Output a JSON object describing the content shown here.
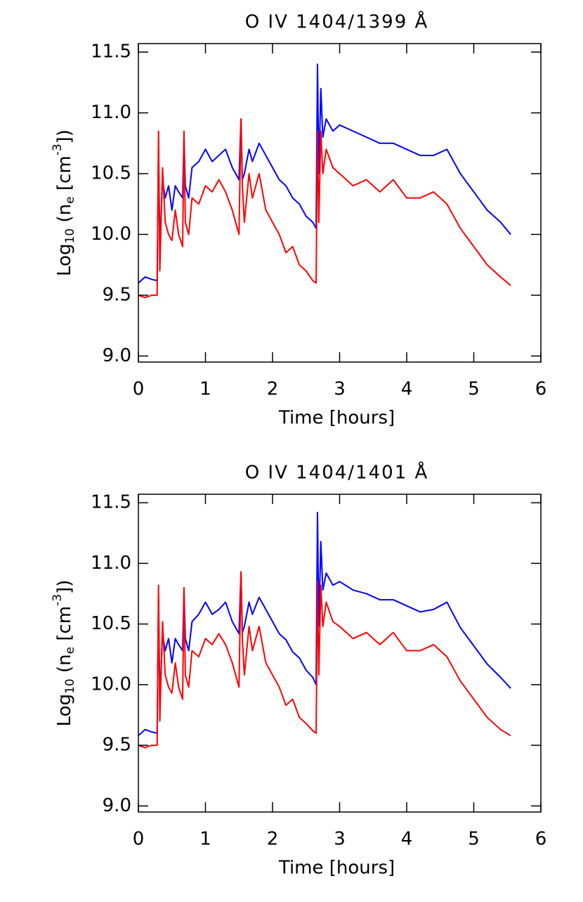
{
  "chart_data": [
    {
      "type": "line",
      "title": "O IV 1404/1399 Å",
      "x_label": "Time [hours]",
      "y_label": [
        "Log",
        "10",
        " (n",
        "e",
        " [cm",
        "-3",
        "])"
      ],
      "xlim": [
        0,
        6
      ],
      "xticks": [
        0,
        1,
        2,
        3,
        4,
        5,
        6
      ],
      "ylim": [
        8.95,
        11.57
      ],
      "yticks": [
        {
          "value": 9,
          "label": "9.0"
        },
        9.5,
        {
          "value": 10,
          "label": "10.0"
        },
        10.5,
        {
          "value": 11,
          "label": "11.0"
        },
        11.5
      ],
      "x": [
        0,
        0.1,
        0.2,
        0.28,
        0.3,
        0.32,
        0.36,
        0.4,
        0.45,
        0.5,
        0.55,
        0.6,
        0.66,
        0.68,
        0.7,
        0.75,
        0.8,
        0.9,
        1.0,
        1.1,
        1.2,
        1.3,
        1.4,
        1.5,
        1.53,
        1.55,
        1.58,
        1.65,
        1.7,
        1.8,
        1.9,
        2.0,
        2.1,
        2.2,
        2.3,
        2.4,
        2.5,
        2.6,
        2.65,
        2.67,
        2.69,
        2.72,
        2.75,
        2.8,
        2.9,
        3.0,
        3.2,
        3.4,
        3.6,
        3.8,
        4.0,
        4.2,
        4.4,
        4.6,
        4.8,
        5.0,
        5.2,
        5.4,
        5.55
      ],
      "series": [
        {
          "color": "#0000ff",
          "values": [
            9.6,
            9.65,
            9.63,
            9.62,
            10.7,
            9.9,
            10.45,
            10.3,
            10.4,
            10.2,
            10.4,
            10.35,
            10.3,
            10.8,
            10.4,
            10.3,
            10.55,
            10.6,
            10.7,
            10.6,
            10.65,
            10.7,
            10.55,
            10.45,
            10.95,
            10.45,
            10.5,
            10.7,
            10.6,
            10.75,
            10.65,
            10.55,
            10.45,
            10.4,
            10.3,
            10.25,
            10.15,
            10.1,
            10.05,
            11.4,
            10.5,
            11.2,
            10.8,
            10.95,
            10.85,
            10.9,
            10.85,
            10.8,
            10.75,
            10.75,
            10.7,
            10.65,
            10.65,
            10.7,
            10.5,
            10.35,
            10.2,
            10.1,
            10.0
          ]
        },
        {
          "color": "#ff0000",
          "values": [
            9.5,
            9.48,
            9.5,
            9.5,
            10.85,
            9.7,
            10.55,
            10.1,
            10.0,
            9.95,
            10.2,
            10.0,
            9.9,
            10.85,
            10.1,
            10.0,
            10.3,
            10.25,
            10.4,
            10.35,
            10.45,
            10.35,
            10.2,
            10.0,
            10.95,
            10.4,
            10.1,
            10.5,
            10.3,
            10.5,
            10.2,
            10.1,
            10.0,
            9.85,
            9.9,
            9.75,
            9.7,
            9.62,
            9.6,
            10.85,
            10.1,
            10.85,
            10.5,
            10.7,
            10.55,
            10.5,
            10.4,
            10.45,
            10.35,
            10.45,
            10.3,
            10.3,
            10.35,
            10.25,
            10.05,
            9.9,
            9.75,
            9.65,
            9.58
          ]
        }
      ]
    },
    {
      "type": "line",
      "title": "O IV 1404/1401 Å",
      "x_label": "Time [hours]",
      "y_label": [
        "Log",
        "10",
        " (n",
        "e",
        " [cm",
        "-3",
        "])"
      ],
      "xlim": [
        0,
        6
      ],
      "xticks": [
        0,
        1,
        2,
        3,
        4,
        5,
        6
      ],
      "ylim": [
        8.95,
        11.57
      ],
      "yticks": [
        {
          "value": 9,
          "label": "9.0"
        },
        9.5,
        {
          "value": 10,
          "label": "10.0"
        },
        10.5,
        {
          "value": 11,
          "label": "11.0"
        },
        11.5
      ],
      "x": [
        0,
        0.1,
        0.2,
        0.28,
        0.3,
        0.32,
        0.36,
        0.4,
        0.45,
        0.5,
        0.55,
        0.6,
        0.66,
        0.68,
        0.7,
        0.75,
        0.8,
        0.9,
        1.0,
        1.1,
        1.2,
        1.3,
        1.4,
        1.5,
        1.53,
        1.55,
        1.58,
        1.65,
        1.7,
        1.8,
        1.9,
        2.0,
        2.1,
        2.2,
        2.3,
        2.4,
        2.5,
        2.6,
        2.65,
        2.67,
        2.69,
        2.72,
        2.75,
        2.8,
        2.9,
        3.0,
        3.2,
        3.4,
        3.6,
        3.8,
        4.0,
        4.2,
        4.4,
        4.6,
        4.8,
        5.0,
        5.2,
        5.4,
        5.55
      ],
      "series": [
        {
          "color": "#0000ff",
          "values": [
            9.58,
            9.63,
            9.61,
            9.6,
            10.7,
            9.88,
            10.42,
            10.28,
            10.38,
            10.18,
            10.38,
            10.33,
            10.28,
            10.78,
            10.38,
            10.28,
            10.52,
            10.58,
            10.68,
            10.58,
            10.62,
            10.68,
            10.52,
            10.42,
            10.93,
            10.43,
            10.48,
            10.68,
            10.58,
            10.72,
            10.62,
            10.52,
            10.42,
            10.37,
            10.27,
            10.22,
            10.12,
            10.06,
            10.0,
            11.42,
            10.48,
            11.18,
            10.78,
            10.92,
            10.82,
            10.85,
            10.78,
            10.75,
            10.7,
            10.7,
            10.65,
            10.6,
            10.62,
            10.68,
            10.47,
            10.32,
            10.17,
            10.06,
            9.97
          ]
        },
        {
          "color": "#ff0000",
          "values": [
            9.5,
            9.48,
            9.5,
            9.5,
            10.82,
            9.7,
            10.52,
            10.08,
            9.98,
            9.93,
            10.18,
            9.98,
            9.88,
            10.8,
            10.08,
            9.98,
            10.28,
            10.23,
            10.38,
            10.33,
            10.42,
            10.33,
            10.18,
            9.98,
            10.93,
            10.38,
            10.08,
            10.48,
            10.28,
            10.48,
            10.18,
            10.08,
            9.98,
            9.83,
            9.88,
            9.73,
            9.68,
            9.62,
            9.6,
            10.85,
            10.08,
            10.82,
            10.48,
            10.68,
            10.52,
            10.48,
            10.38,
            10.43,
            10.33,
            10.43,
            10.28,
            10.28,
            10.33,
            10.23,
            10.03,
            9.88,
            9.73,
            9.63,
            9.58
          ]
        }
      ]
    }
  ]
}
